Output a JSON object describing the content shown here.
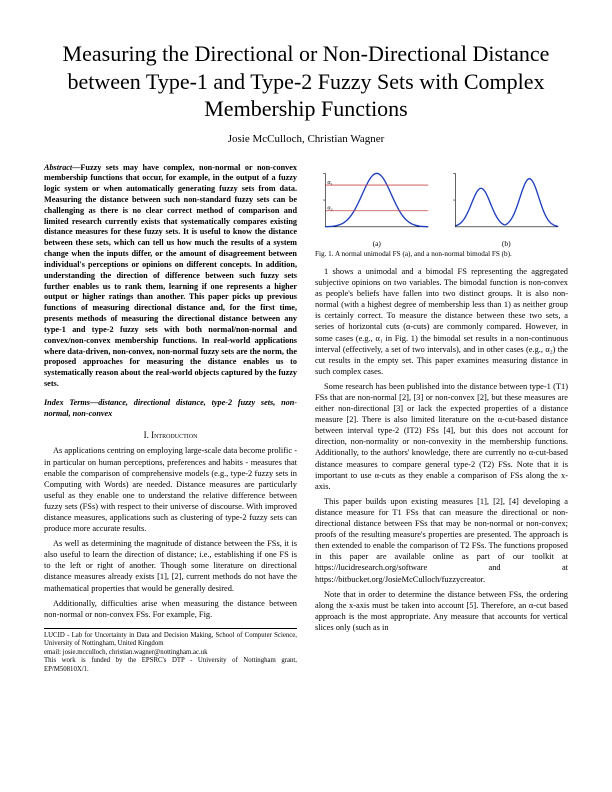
{
  "title": "Measuring the Directional or Non-Directional Distance between Type-1 and Type-2 Fuzzy Sets with Complex Membership Functions",
  "authors": "Josie McCulloch, Christian Wagner",
  "abstract_label": "Abstract",
  "abstract_text": "Fuzzy sets may have complex, non-normal or non-convex membership functions that occur, for example, in the output of a fuzzy logic system or when automatically generating fuzzy sets from data. Measuring the distance between such non-standard fuzzy sets can be challenging as there is no clear correct method of comparison and limited research currently exists that systematically compares existing distance measures for these fuzzy sets. It is useful to know the distance between these sets, which can tell us how much the results of a system change when the inputs differ, or the amount of disagreement between individual's perceptions or opinions on different concepts. In addition, understanding the direction of difference between such fuzzy sets further enables us to rank them, learning if one represents a higher output or higher ratings than another. This paper picks up previous functions of measuring directional distance and, for the first time, presents methods of measuring the directional distance between any type-1 and type-2 fuzzy sets with both normal/non-normal and convex/non-convex membership functions. In real-world applications where data-driven, non-convex, non-normal fuzzy sets are the norm, the proposed approaches for measuring the distance enables us to systematically reason about the real-world objects captured by the fuzzy sets.",
  "index_terms_label": "Index Terms",
  "index_terms_text": "distance, directional distance, type-2 fuzzy sets, non-normal, non-convex",
  "section1_heading": "I. Introduction",
  "intro_p1": "As applications centring on employing large-scale data become prolific - in particular on human perceptions, preferences and habits - measures that enable the comparison of comprehensive models (e.g., type-2 fuzzy sets in Computing with Words) are needed. Distance measures are particularly useful as they enable one to understand the relative difference between fuzzy sets (FSs) with respect to their universe of discourse. With improved distance measures, applications such as clustering of type-2 fuzzy sets can produce more accurate results.",
  "intro_p2": "As well as determining the magnitude of distance between the FSs, it is also useful to learn the direction of distance; i.e., establishing if one FS is to the left or right of another. Though some literature on directional distance measures already exists [1], [2], current methods do not have the mathematical properties that would be generally desired.",
  "intro_p3": "Additionally, difficulties arise when measuring the distance between non-normal or non-convex FSs. For example, Fig.",
  "footnote_l1": "LUCID - Lab for Uncertainty in Data and Decision Making, School of Computer Science, University of Nottingham, United Kingdom",
  "footnote_l2": "email: josie.mcculloch, christian.wagner@nottingham.ac.uk",
  "footnote_l3": "This work is funded by the EPSRC's DTP - University of Nottingham grant, EP/M50810X/1.",
  "figure": {
    "grid_color": "#000000",
    "line_color": "#1f3fbf",
    "alpha_line_color": "#cc4444",
    "line_width": 1.3,
    "axis_width": 0.6,
    "sub_a": {
      "label": "(a)",
      "alpha1_label": "α₁",
      "alpha2_label": "α₂",
      "ylim": [
        0,
        1
      ],
      "xlim": [
        0,
        8
      ],
      "peak_x": 4,
      "peak_y": 1,
      "alpha1_y": 0.78,
      "alpha2_y": 0.3
    },
    "sub_b": {
      "label": "(b)",
      "ylim": [
        0,
        1
      ],
      "xlim": [
        0,
        10
      ],
      "peaks": [
        [
          2.5,
          0.72
        ],
        [
          7.2,
          0.9
        ]
      ]
    },
    "caption": "Fig. 1.  A normal unimodal FS (a), and a non-normal bimodal FS (b)."
  },
  "col2_p1": "1 shows a unimodal and a bimodal FS representing the aggregated subjective opinions on two variables. The bimodal function is non-convex as people's beliefs have fallen into two distinct groups. It is also non-normal (with a highest degree of membership less than 1) as neither group is certainly correct. To measure the distance between these two sets, a series of horizontal cuts (α-cuts) are commonly compared. However, in some cases (e.g., α₁ in Fig. 1) the bimodal set results in a non-continuous interval (effectively, a set of two intervals), and in other cases (e.g., α₂) the cut results in the empty set. This paper examines measuring distance in such complex cases.",
  "col2_p2": "Some research has been published into the distance between type-1 (T1) FSs that are non-normal [2], [3] or non-convex [2], but these measures are either non-directional [3] or lack the expected properties of a distance measure [2]. There is also limited literature on the α-cut-based distance between interval type-2 (IT2) FSs [4], but this does not account for direction, non-normality or non-convexity in the membership functions. Additionally, to the authors' knowledge, there are currently no α-cut-based distance measures to compare general type-2 (T2) FSs. Note that it is important to use α-cuts as they enable a comparison of FSs along the x-axis.",
  "col2_p3": "This paper builds upon existing measures [1], [2], [4] developing a distance measure for T1 FSs that can measure the directional or non-directional distance between FSs that may be non-normal or non-convex; proofs of the resulting measure's properties are presented. The approach is then extended to enable the comparison of T2 FSs. The functions proposed in this paper are available online as part of our toolkit at https://lucidresearch.org/software and at https://bitbucket.org/JosieMcCulloch/fuzzycreator.",
  "col2_p4": "Note that in order to determine the distance between FSs, the ordering along the x-axis must be taken into account [5]. Therefore, an α-cut based approach is the most appropriate. Any measure that accounts for vertical slices only (such as in"
}
